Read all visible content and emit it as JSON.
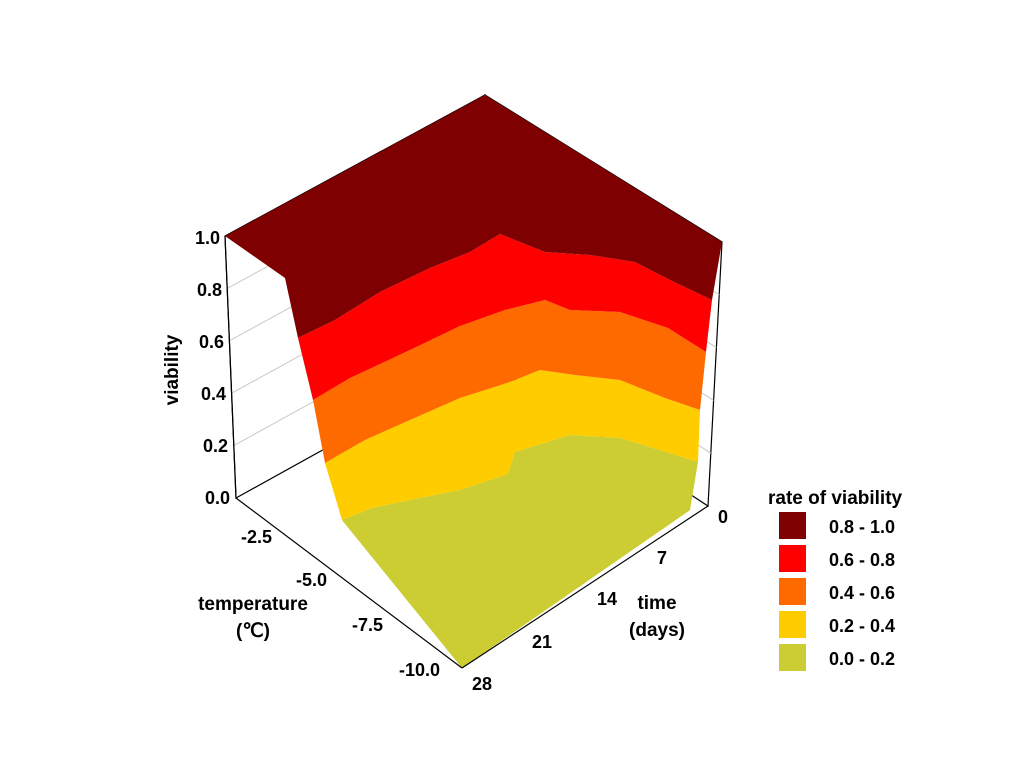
{
  "chart_data": {
    "type": "surface-3d",
    "z_axis": {
      "label": "viability",
      "range": [
        0,
        1
      ],
      "ticks": [
        "0.0",
        "0.2",
        "0.4",
        "0.6",
        "0.8",
        "1.0"
      ]
    },
    "temperature_axis": {
      "label_line1": "temperature",
      "label_line2": "(℃)",
      "range": [
        0,
        -10
      ],
      "ticks": [
        "-2.5",
        "-5.0",
        "-7.5",
        "-10.0"
      ]
    },
    "time_axis": {
      "label_line1": "time",
      "label_line2": "(days)",
      "range": [
        0,
        28
      ],
      "ticks": [
        "0",
        "7",
        "14",
        "21",
        "28"
      ]
    },
    "legend": {
      "title": "rate of viability",
      "entries": [
        {
          "label": "0.8 - 1.0",
          "color": "#7f0000"
        },
        {
          "label": "0.6 - 0.8",
          "color": "#ff0000"
        },
        {
          "label": "0.4 - 0.6",
          "color": "#ff6a00"
        },
        {
          "label": "0.2 - 0.4",
          "color": "#ffcc00"
        },
        {
          "label": "0.0 - 0.2",
          "color": "#cccc33"
        }
      ]
    },
    "contour_levels": [
      0.2,
      0.4,
      0.6,
      0.8
    ],
    "surface_at_min_temperature": {
      "time_days": [
        0,
        3,
        7,
        10,
        14,
        17,
        21,
        24,
        28
      ],
      "contour_0_2_temperature": [
        -9.2,
        -8.7,
        -7.9,
        -7.2,
        -6.8,
        -7.0,
        -7.5,
        -8.3,
        -9.3
      ],
      "contour_0_4_temperature": [
        -7.4,
        -6.6,
        -5.8,
        -5.2,
        -4.9,
        -5.0,
        -5.6,
        -6.3,
        -7.2
      ],
      "contour_0_6_temperature": [
        -5.6,
        -4.9,
        -4.3,
        -3.9,
        -3.7,
        -3.8,
        -4.2,
        -4.8,
        -5.5
      ],
      "contour_0_8_temperature": [
        -3.6,
        -3.1,
        -2.7,
        -2.5,
        -2.4,
        -2.5,
        -2.8,
        -3.2,
        -3.7
      ]
    }
  }
}
